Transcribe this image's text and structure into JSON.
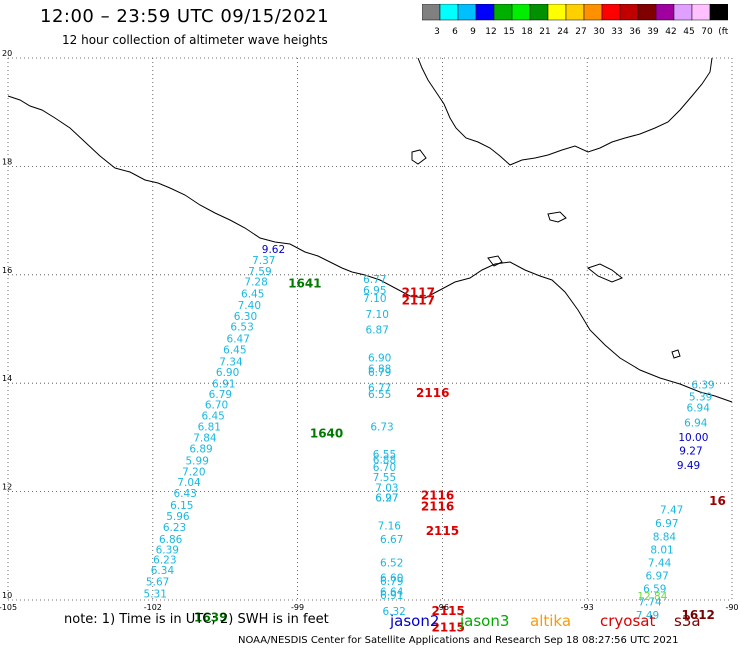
{
  "header": {
    "title": "12:00 – 23:59 UTC 09/15/2021",
    "subtitle": "12 hour collection of altimeter wave heights"
  },
  "legend": {
    "colors": [
      "#808080",
      "#00ffff",
      "#00bfff",
      "#0000ff",
      "#00b000",
      "#00ee00",
      "#009000",
      "#ffff00",
      "#ffd000",
      "#ff9000",
      "#ff0000",
      "#c00000",
      "#800000",
      "#a000a0",
      "#e0a0ff",
      "#ffc0ff",
      "#000000"
    ],
    "labels": [
      "3",
      "6",
      "9",
      "12",
      "15",
      "18",
      "21",
      "24",
      "27",
      "30",
      "33",
      "36",
      "39",
      "42",
      "45",
      "70",
      "(ft)"
    ]
  },
  "axes": {
    "lat_labels": [
      {
        "lat": 20,
        "text": "20"
      },
      {
        "lat": 18,
        "text": "18"
      },
      {
        "lat": 16,
        "text": "16"
      },
      {
        "lat": 14,
        "text": "14"
      },
      {
        "lat": 12,
        "text": "12"
      },
      {
        "lat": 10,
        "text": "10"
      }
    ],
    "lon_labels": [
      {
        "lon": -105,
        "text": "-105"
      },
      {
        "lon": -102,
        "text": "-102"
      },
      {
        "lon": -99,
        "text": "-99"
      },
      {
        "lon": -96,
        "text": "-96"
      },
      {
        "lon": -93,
        "text": "-93"
      },
      {
        "lon": -90,
        "text": "-90"
      }
    ],
    "lat_range": [
      10,
      20
    ],
    "lon_range": [
      -105,
      -90
    ]
  },
  "tracks": {
    "jason3_west": [
      {
        "lon": -101.95,
        "lat": 10.05,
        "v": "5.31"
      },
      {
        "lon": -101.9,
        "lat": 10.27,
        "v": "5.67"
      },
      {
        "lon": -101.8,
        "lat": 10.48,
        "v": "6.34"
      },
      {
        "lon": -101.75,
        "lat": 10.67,
        "v": "6.23"
      },
      {
        "lon": -101.7,
        "lat": 10.86,
        "v": "6.39"
      },
      {
        "lon": -101.63,
        "lat": 11.05,
        "v": "6.86"
      },
      {
        "lon": -101.55,
        "lat": 11.27,
        "v": "6.23"
      },
      {
        "lon": -101.48,
        "lat": 11.48,
        "v": "5.96"
      },
      {
        "lon": -101.4,
        "lat": 11.68,
        "v": "6.15"
      },
      {
        "lon": -101.33,
        "lat": 11.9,
        "v": "6.43"
      },
      {
        "lon": -101.25,
        "lat": 12.1,
        "v": "7.04"
      },
      {
        "lon": -101.15,
        "lat": 12.3,
        "v": "7.20"
      },
      {
        "lon": -101.08,
        "lat": 12.5,
        "v": "5.99"
      },
      {
        "lon": -101.0,
        "lat": 12.72,
        "v": "6.89"
      },
      {
        "lon": -100.92,
        "lat": 12.92,
        "v": "7.84"
      },
      {
        "lon": -100.83,
        "lat": 13.13,
        "v": "6.81"
      },
      {
        "lon": -100.75,
        "lat": 13.33,
        "v": "6.45"
      },
      {
        "lon": -100.68,
        "lat": 13.53,
        "v": "6.70"
      },
      {
        "lon": -100.6,
        "lat": 13.73,
        "v": "6.79"
      },
      {
        "lon": -100.53,
        "lat": 13.92,
        "v": "6.91"
      },
      {
        "lon": -100.45,
        "lat": 14.13,
        "v": "6.90"
      },
      {
        "lon": -100.38,
        "lat": 14.33,
        "v": "7.34"
      },
      {
        "lon": -100.3,
        "lat": 14.55,
        "v": "6.45"
      },
      {
        "lon": -100.23,
        "lat": 14.75,
        "v": "6.47"
      },
      {
        "lon": -100.15,
        "lat": 14.97,
        "v": "6.53"
      },
      {
        "lon": -100.08,
        "lat": 15.17,
        "v": "6.30"
      },
      {
        "lon": -100.0,
        "lat": 15.37,
        "v": "7.40"
      },
      {
        "lon": -99.93,
        "lat": 15.58,
        "v": "6.45"
      },
      {
        "lon": -99.86,
        "lat": 15.8,
        "v": "7.28"
      },
      {
        "lon": -99.78,
        "lat": 16.0,
        "v": "7.59"
      },
      {
        "lon": -99.7,
        "lat": 16.2,
        "v": "7.37"
      }
    ],
    "jason2_west": [
      {
        "lon": -99.5,
        "lat": 16.4,
        "v": "9.62"
      }
    ],
    "jason3_mid": [
      {
        "lon": -97.4,
        "lat": 15.85,
        "v": "6.77"
      },
      {
        "lon": -97.4,
        "lat": 15.65,
        "v": "6.95"
      },
      {
        "lon": -97.4,
        "lat": 15.5,
        "v": "7.10"
      },
      {
        "lon": -97.35,
        "lat": 15.2,
        "v": "7.10"
      },
      {
        "lon": -97.35,
        "lat": 14.92,
        "v": "6.87"
      },
      {
        "lon": -97.3,
        "lat": 14.4,
        "v": "6.90"
      },
      {
        "lon": -97.3,
        "lat": 14.2,
        "v": "6.88"
      },
      {
        "lon": -97.3,
        "lat": 14.13,
        "v": "6.79"
      },
      {
        "lon": -97.3,
        "lat": 13.85,
        "v": "6.77"
      },
      {
        "lon": -97.3,
        "lat": 13.73,
        "v": "6.55"
      },
      {
        "lon": -97.25,
        "lat": 13.13,
        "v": "6.73"
      },
      {
        "lon": -97.2,
        "lat": 12.62,
        "v": "6.55"
      },
      {
        "lon": -97.2,
        "lat": 12.52,
        "v": "6.88"
      },
      {
        "lon": -97.2,
        "lat": 12.38,
        "v": "6.70"
      },
      {
        "lon": -97.2,
        "lat": 12.2,
        "v": "7.55"
      },
      {
        "lon": -97.15,
        "lat": 12.0,
        "v": "7.03"
      },
      {
        "lon": -97.15,
        "lat": 11.82,
        "v": "6.27"
      },
      {
        "lon": -97.15,
        "lat": 11.82,
        "v": "6.97"
      },
      {
        "lon": -97.1,
        "lat": 11.3,
        "v": "7.16"
      },
      {
        "lon": -97.05,
        "lat": 11.05,
        "v": "6.67"
      },
      {
        "lon": -97.05,
        "lat": 10.62,
        "v": "6.52"
      },
      {
        "lon": -97.05,
        "lat": 10.34,
        "v": "6.60"
      },
      {
        "lon": -97.05,
        "lat": 10.28,
        "v": "6.79"
      },
      {
        "lon": -97.05,
        "lat": 10.08,
        "v": "6.64"
      },
      {
        "lon": -97.05,
        "lat": 10.02,
        "v": "6.91"
      },
      {
        "lon": -97.0,
        "lat": 9.72,
        "v": "6.32"
      }
    ],
    "jason3_east": [
      {
        "lon": -90.6,
        "lat": 13.9,
        "v": "6.39"
      },
      {
        "lon": -90.65,
        "lat": 13.68,
        "v": "5.39"
      },
      {
        "lon": -90.7,
        "lat": 13.48,
        "v": "6.94"
      },
      {
        "lon": -90.75,
        "lat": 13.2,
        "v": "6.94"
      },
      {
        "lon": -91.25,
        "lat": 11.6,
        "v": "7.47"
      },
      {
        "lon": -91.35,
        "lat": 11.35,
        "v": "6.97"
      },
      {
        "lon": -91.4,
        "lat": 11.1,
        "v": "8.84"
      },
      {
        "lon": -91.45,
        "lat": 10.86,
        "v": "8.01"
      },
      {
        "lon": -91.5,
        "lat": 10.62,
        "v": "7.44"
      },
      {
        "lon": -91.55,
        "lat": 10.38,
        "v": "6.97"
      },
      {
        "lon": -91.6,
        "lat": 10.14,
        "v": "6.59"
      },
      {
        "lon": -91.7,
        "lat": 9.9,
        "v": "7.74"
      },
      {
        "lon": -91.75,
        "lat": 9.65,
        "v": "7.49"
      }
    ],
    "jason2_east": [
      {
        "lon": -90.8,
        "lat": 12.93,
        "v": "10.00"
      },
      {
        "lon": -90.85,
        "lat": 12.68,
        "v": "9.27"
      },
      {
        "lon": -90.9,
        "lat": 12.42,
        "v": "9.49"
      }
    ],
    "altika_east": [
      {
        "lon": -91.65,
        "lat": 10.0,
        "v": "12.84"
      }
    ]
  },
  "time_labels": [
    {
      "lon": -98.85,
      "lat": 15.77,
      "v": "1641",
      "c": "#007a00"
    },
    {
      "lon": -98.4,
      "lat": 13.0,
      "v": "1640",
      "c": "#007a00"
    },
    {
      "lon": -100.8,
      "lat": 9.6,
      "v": "1639",
      "c": "#007a00"
    },
    {
      "lon": -96.5,
      "lat": 15.6,
      "v": "2117",
      "c": "#dd0000"
    },
    {
      "lon": -96.5,
      "lat": 15.45,
      "v": "2117",
      "c": "#dd0000"
    },
    {
      "lon": -96.2,
      "lat": 13.75,
      "v": "2116",
      "c": "#dd0000"
    },
    {
      "lon": -96.1,
      "lat": 11.85,
      "v": "2116",
      "c": "#dd0000"
    },
    {
      "lon": -96.1,
      "lat": 11.65,
      "v": "2116",
      "c": "#dd0000"
    },
    {
      "lon": -96.0,
      "lat": 11.2,
      "v": "2115",
      "c": "#dd0000"
    },
    {
      "lon": -95.88,
      "lat": 9.72,
      "v": "2115",
      "c": "#dd0000"
    },
    {
      "lon": -95.88,
      "lat": 9.42,
      "v": "2115",
      "c": "#dd0000"
    },
    {
      "lon": -90.3,
      "lat": 11.75,
      "v": "16",
      "c": "#990000"
    },
    {
      "lon": -90.7,
      "lat": 9.65,
      "v": "1612",
      "c": "#770000"
    }
  ],
  "note": {
    "text": "note:  1) Time is in UTC;  2) SWH is in feet",
    "sat_jason2": "jason2",
    "sat_jason3": "jason3",
    "sat_altika": "altika",
    "sat_cryosat": "cryosat",
    "sat_s3a": "s3a"
  },
  "colors": {
    "jason2": "#0000cc",
    "jason3": "#00aa00",
    "altika": "#ff9900",
    "cryosat": "#dd0000",
    "s3a": "#800000",
    "wave_cyan": "#1ab8e0"
  },
  "footer": "NOAA/NESDIS Center for Satellite Applications and Research    Sep 18 08:27:56 UTC 2021"
}
